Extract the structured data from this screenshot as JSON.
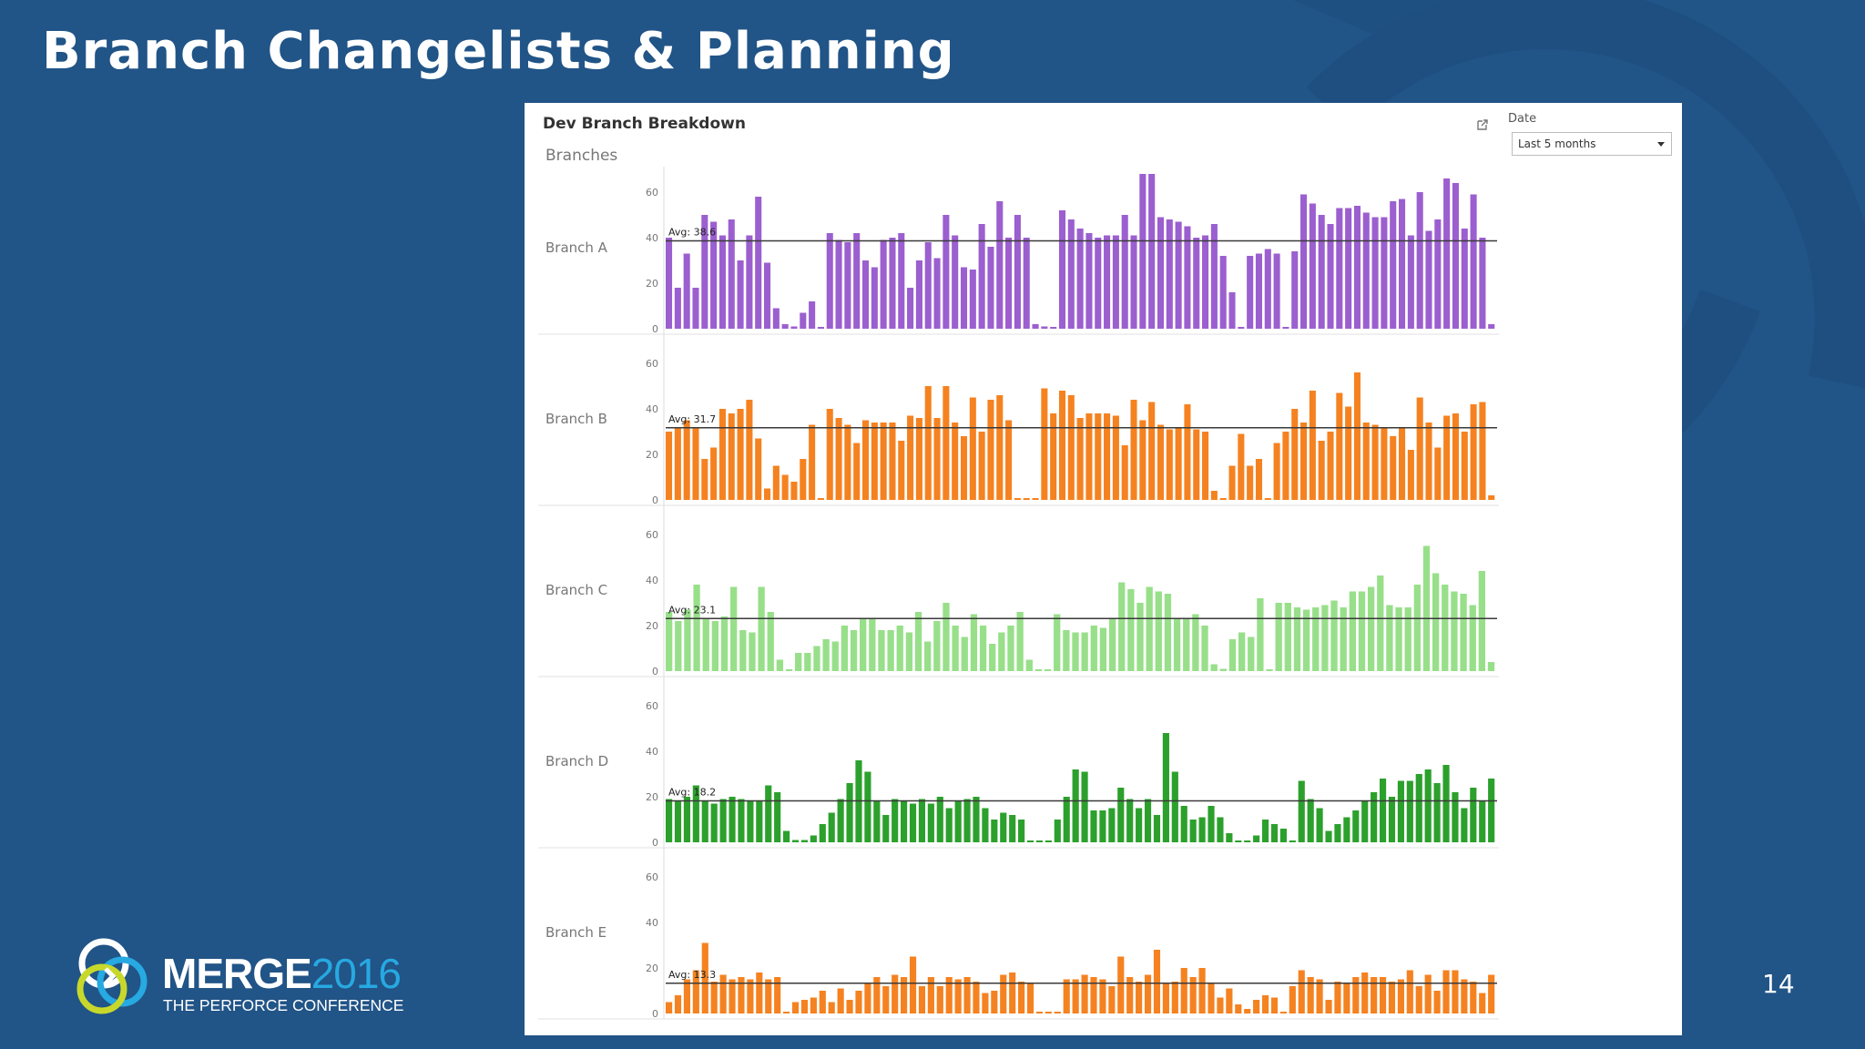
{
  "slide": {
    "title": "Branch Changelists & Planning",
    "page_number": "14"
  },
  "logo": {
    "main": "MERGE",
    "year": "2016",
    "subtitle": "THE PERFORCE CONFERENCE"
  },
  "colors": {
    "background": "#215487",
    "branch_a": "#9b5fcf",
    "branch_b": "#f58220",
    "branch_c": "#98df8a",
    "branch_d": "#2ca02c",
    "branch_e": "#f58220"
  },
  "dashboard": {
    "title": "Dev Branch Breakdown",
    "branches_label": "Branches",
    "date_filter": {
      "label": "Date",
      "selected": "Last 5 months"
    },
    "popout_icon": "external-link-icon"
  },
  "chart_data": {
    "type": "bar",
    "y_ticks": [
      "0",
      "20",
      "40",
      "60"
    ],
    "ylim": [
      0,
      68
    ],
    "grid": false,
    "series": [
      {
        "name": "Branch A",
        "avg": 38.6,
        "avg_label": "Avg: 38.6",
        "color": "#9b5fcf",
        "values": [
          40,
          18,
          33,
          18,
          50,
          47,
          41,
          48,
          30,
          41,
          58,
          29,
          9,
          2,
          1,
          7,
          12,
          0,
          42,
          39,
          38,
          42,
          30,
          27,
          39,
          40,
          42,
          18,
          30,
          38,
          31,
          50,
          41,
          27,
          26,
          46,
          36,
          56,
          40,
          50,
          40,
          2,
          1,
          0,
          52,
          48,
          44,
          42,
          40,
          41,
          41,
          50,
          41,
          68,
          68,
          49,
          48,
          47,
          45,
          40,
          41,
          46,
          32,
          16,
          0,
          32,
          33,
          35,
          33,
          0,
          34,
          59,
          55,
          50,
          46,
          53,
          53,
          54,
          51,
          49,
          49,
          56,
          57,
          41,
          60,
          43,
          48,
          66,
          64,
          44,
          59,
          40,
          2
        ]
      },
      {
        "name": "Branch B",
        "avg": 31.7,
        "avg_label": "Avg: 31.7",
        "color": "#f58220",
        "values": [
          30,
          32,
          35,
          32,
          18,
          23,
          40,
          38,
          40,
          44,
          27,
          5,
          15,
          11,
          8,
          18,
          33,
          0,
          40,
          36,
          33,
          25,
          35,
          34,
          34,
          34,
          26,
          37,
          36,
          50,
          36,
          50,
          34,
          28,
          45,
          30,
          44,
          46,
          35,
          0,
          0,
          0,
          49,
          38,
          48,
          46,
          36,
          38,
          38,
          38,
          37,
          24,
          44,
          35,
          43,
          33,
          31,
          32,
          42,
          31,
          30,
          4,
          0,
          15,
          29,
          15,
          18,
          0,
          25,
          30,
          40,
          34,
          48,
          26,
          30,
          47,
          41,
          56,
          34,
          33,
          32,
          28,
          32,
          22,
          45,
          34,
          23,
          37,
          38,
          30,
          42,
          43,
          2
        ]
      },
      {
        "name": "Branch C",
        "avg": 23.1,
        "avg_label": "Avg: 23.1",
        "color": "#98df8a",
        "values": [
          26,
          22,
          27,
          38,
          23,
          22,
          24,
          37,
          18,
          17,
          37,
          26,
          5,
          0,
          8,
          8,
          11,
          14,
          13,
          20,
          18,
          23,
          23,
          18,
          18,
          20,
          17,
          26,
          13,
          22,
          30,
          20,
          15,
          25,
          20,
          12,
          17,
          20,
          26,
          5,
          0,
          0,
          25,
          18,
          17,
          17,
          20,
          19,
          23,
          39,
          36,
          30,
          37,
          35,
          34,
          23,
          23,
          25,
          20,
          3,
          1,
          14,
          17,
          15,
          32,
          0,
          30,
          30,
          28,
          27,
          28,
          29,
          31,
          28,
          35,
          35,
          37,
          42,
          29,
          28,
          28,
          38,
          55,
          43,
          38,
          35,
          34,
          29,
          44,
          4
        ]
      },
      {
        "name": "Branch D",
        "avg": 18.2,
        "avg_label": "Avg: 18.2",
        "color": "#2ca02c",
        "values": [
          19,
          18,
          20,
          25,
          18,
          17,
          19,
          20,
          19,
          18,
          18,
          25,
          22,
          5,
          1,
          1,
          3,
          8,
          13,
          19,
          26,
          36,
          31,
          18,
          12,
          19,
          18,
          17,
          19,
          17,
          20,
          15,
          18,
          19,
          20,
          15,
          10,
          13,
          12,
          10,
          0,
          0,
          0,
          10,
          20,
          32,
          31,
          14,
          14,
          15,
          24,
          19,
          15,
          19,
          12,
          48,
          31,
          16,
          10,
          11,
          16,
          11,
          4,
          0,
          0,
          3,
          10,
          8,
          6,
          0,
          27,
          19,
          15,
          5,
          8,
          11,
          14,
          18,
          22,
          28,
          20,
          27,
          27,
          30,
          32,
          26,
          34,
          22,
          15,
          24,
          18,
          28
        ]
      },
      {
        "name": "Branch E",
        "avg": 13.3,
        "avg_label": "Avg: 13.3",
        "color": "#f58220",
        "values": [
          5,
          8,
          15,
          19,
          31,
          14,
          17,
          15,
          16,
          15,
          18,
          15,
          16,
          0,
          5,
          6,
          7,
          10,
          5,
          11,
          6,
          10,
          13,
          16,
          12,
          17,
          16,
          25,
          12,
          16,
          12,
          16,
          15,
          16,
          14,
          9,
          10,
          17,
          18,
          14,
          13,
          0,
          0,
          0,
          15,
          15,
          17,
          16,
          15,
          12,
          25,
          16,
          14,
          17,
          28,
          13,
          14,
          20,
          16,
          20,
          13,
          7,
          11,
          4,
          2,
          6,
          8,
          7,
          0,
          12,
          19,
          16,
          15,
          6,
          14,
          13,
          16,
          18,
          16,
          16,
          14,
          15,
          19,
          12,
          17,
          10,
          19,
          19,
          15,
          14,
          9,
          17
        ]
      }
    ]
  }
}
